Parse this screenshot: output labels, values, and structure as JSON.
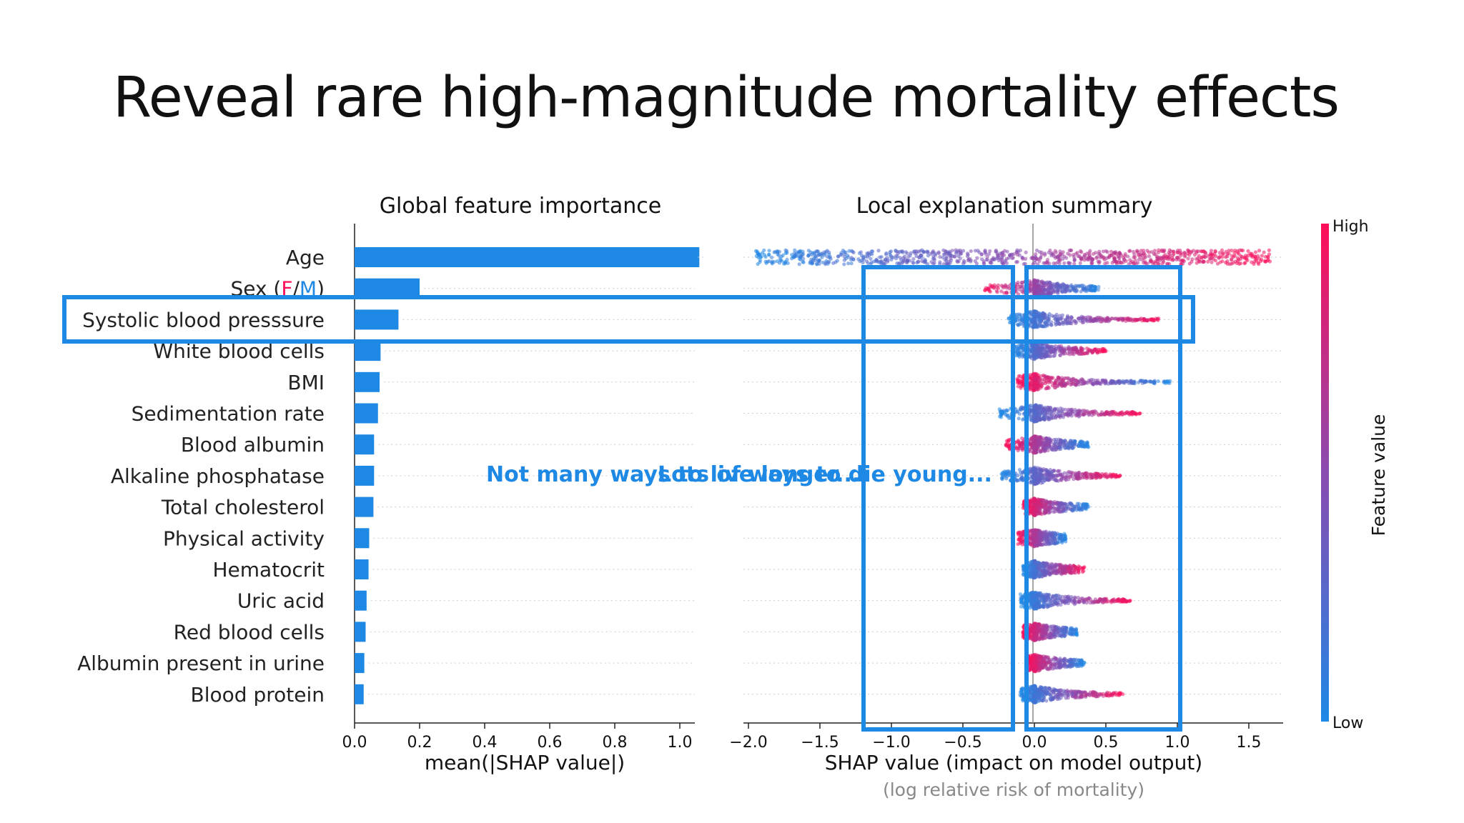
{
  "slide": {
    "title": "Reveal rare high-magnitude mortality effects"
  },
  "annotations": {
    "text_a": "Not many ways to live longer...",
    "text_b": "Lots of ways to die young..."
  },
  "colors": {
    "bar": "#1e88e5",
    "high": "#ff0d57",
    "low": "#1e88e5",
    "box": "#1e88e5",
    "annotation": "#1e88e5"
  },
  "chart_data": [
    {
      "type": "bar",
      "orientation": "horizontal",
      "title": "Global feature importance",
      "xlabel": "mean(|SHAP value|)",
      "xlim": [
        0,
        1.1
      ],
      "xticks": [
        "0.0",
        "0.2",
        "0.4",
        "0.6",
        "0.8",
        "1.0"
      ],
      "categories": [
        "Age",
        "Sex (F/M)",
        "Systolic blood presssure",
        "White blood cells",
        "BMI",
        "Sedimentation rate",
        "Blood albumin",
        "Alkaline phosphatase",
        "Total cholesterol",
        "Physical activity",
        "Hematocrit",
        "Uric acid",
        "Red blood cells",
        "Albumin present in urine",
        "Blood protein"
      ],
      "values": [
        1.06,
        0.2,
        0.135,
        0.08,
        0.077,
        0.072,
        0.06,
        0.06,
        0.058,
        0.045,
        0.043,
        0.037,
        0.034,
        0.03,
        0.028
      ]
    },
    {
      "type": "scatter",
      "subtype": "beeswarm",
      "title": "Local explanation summary",
      "xlabel": "SHAP value (impact on model output)",
      "xlabel2": "(log relative risk of mortality)",
      "xlim": [
        -2.1,
        1.85
      ],
      "xticks": [
        "−2.0",
        "−1.5",
        "−1.0",
        "−0.5",
        "0.0",
        "0.5",
        "1.0",
        "1.5"
      ],
      "colorbar": {
        "label": "Feature value",
        "high": "High",
        "low": "Low"
      },
      "features": [
        {
          "name": "Age",
          "min": -1.95,
          "max": 1.65,
          "low_color_side": "left"
        },
        {
          "name": "Sex (F/M)",
          "min": -0.35,
          "max": 0.45,
          "low_color_side": "right"
        },
        {
          "name": "Systolic blood presssure",
          "min": -0.18,
          "max": 0.9,
          "low_color_side": "left"
        },
        {
          "name": "White blood cells",
          "min": -0.15,
          "max": 0.5,
          "low_color_side": "left"
        },
        {
          "name": "BMI",
          "min": -0.12,
          "max": 0.95,
          "low_color_side": "right"
        },
        {
          "name": "Sedimentation rate",
          "min": -0.25,
          "max": 0.75,
          "low_color_side": "left"
        },
        {
          "name": "Blood albumin",
          "min": -0.2,
          "max": 0.38,
          "low_color_side": "right"
        },
        {
          "name": "Alkaline phosphatase",
          "min": -0.23,
          "max": 0.6,
          "low_color_side": "left"
        },
        {
          "name": "Total cholesterol",
          "min": -0.08,
          "max": 0.38,
          "low_color_side": "right"
        },
        {
          "name": "Physical activity",
          "min": -0.12,
          "max": 0.22,
          "low_color_side": "right"
        },
        {
          "name": "Hematocrit",
          "min": -0.08,
          "max": 0.35,
          "low_color_side": "left"
        },
        {
          "name": "Uric acid",
          "min": -0.1,
          "max": 0.68,
          "low_color_side": "left"
        },
        {
          "name": "Red blood cells",
          "min": -0.08,
          "max": 0.3,
          "low_color_side": "right"
        },
        {
          "name": "Albumin present in urine",
          "min": -0.05,
          "max": 0.35,
          "low_color_side": "right"
        },
        {
          "name": "Blood protein",
          "min": -0.1,
          "max": 0.62,
          "low_color_side": "left"
        }
      ]
    }
  ]
}
